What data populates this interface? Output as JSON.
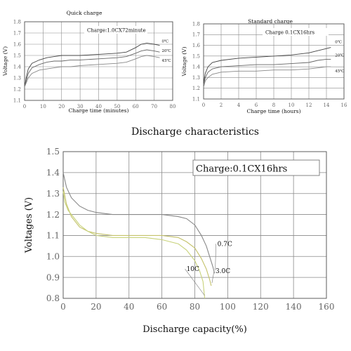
{
  "chart_data": [
    {
      "type": "line",
      "title": "Quick charge",
      "annotation": "Charge:1.0CX72minute",
      "xlabel": "Charge time (minutes)",
      "ylabel": "Voltage (V)",
      "xlim": [
        0,
        80
      ],
      "ylim": [
        1.1,
        1.8
      ],
      "xticks": [
        "0",
        "10",
        "20",
        "30",
        "40",
        "50",
        "60",
        "70",
        "80"
      ],
      "yticks": [
        "1.1",
        "1.2",
        "1.3",
        "1.4",
        "1.5",
        "1.6",
        "1.7",
        "1.8"
      ],
      "grid": true,
      "series": [
        {
          "name": "0℃",
          "color": "#444444",
          "x": [
            0,
            1,
            2,
            4,
            8,
            12,
            16,
            20,
            25,
            30,
            40,
            50,
            55,
            60,
            63,
            66,
            70,
            73
          ],
          "y": [
            1.22,
            1.31,
            1.38,
            1.43,
            1.46,
            1.48,
            1.49,
            1.5,
            1.5,
            1.5,
            1.51,
            1.52,
            1.53,
            1.57,
            1.6,
            1.61,
            1.6,
            1.59
          ]
        },
        {
          "name": "20℃",
          "color": "#666666",
          "x": [
            0,
            1,
            2,
            4,
            8,
            12,
            16,
            20,
            25,
            30,
            40,
            50,
            55,
            60,
            63,
            66,
            70,
            73
          ],
          "y": [
            1.22,
            1.28,
            1.34,
            1.39,
            1.42,
            1.44,
            1.45,
            1.45,
            1.46,
            1.46,
            1.47,
            1.48,
            1.49,
            1.52,
            1.54,
            1.55,
            1.54,
            1.53
          ]
        },
        {
          "name": "45℃",
          "color": "#888888",
          "x": [
            0,
            1,
            2,
            4,
            8,
            12,
            16,
            20,
            25,
            30,
            40,
            50,
            55,
            60,
            63,
            66,
            70,
            73
          ],
          "y": [
            1.22,
            1.26,
            1.3,
            1.34,
            1.37,
            1.38,
            1.39,
            1.4,
            1.4,
            1.41,
            1.42,
            1.43,
            1.44,
            1.47,
            1.49,
            1.5,
            1.49,
            1.48
          ]
        }
      ]
    },
    {
      "type": "line",
      "title": "Standard charge",
      "annotation": "Charge 0.1CX16hrs",
      "xlabel": "Charge time (hours)",
      "ylabel": "Voltage (V)",
      "xlim": [
        0,
        16
      ],
      "ylim": [
        1.1,
        1.8
      ],
      "xticks": [
        "0",
        "2",
        "4",
        "6",
        "8",
        "10",
        "12",
        "14",
        "16"
      ],
      "yticks": [
        "1.1",
        "1.2",
        "1.3",
        "1.4",
        "1.5",
        "1.6",
        "1.7",
        "1.8"
      ],
      "grid": true,
      "series": [
        {
          "name": "0℃",
          "color": "#444444",
          "x": [
            0,
            0.2,
            0.5,
            1,
            2,
            4,
            6,
            8,
            10,
            12,
            13,
            14,
            14.5
          ],
          "y": [
            1.25,
            1.34,
            1.4,
            1.44,
            1.46,
            1.48,
            1.49,
            1.5,
            1.51,
            1.53,
            1.55,
            1.57,
            1.58
          ]
        },
        {
          "name": "20℃",
          "color": "#666666",
          "x": [
            0,
            0.2,
            0.5,
            1,
            2,
            4,
            6,
            8,
            10,
            12,
            13,
            14,
            14.5
          ],
          "y": [
            1.23,
            1.3,
            1.35,
            1.38,
            1.4,
            1.41,
            1.42,
            1.42,
            1.43,
            1.44,
            1.46,
            1.47,
            1.47
          ]
        },
        {
          "name": "45℃",
          "color": "#888888",
          "x": [
            0,
            0.2,
            0.5,
            1,
            2,
            4,
            6,
            8,
            10,
            12,
            13,
            14,
            14.5
          ],
          "y": [
            1.21,
            1.27,
            1.3,
            1.33,
            1.35,
            1.36,
            1.36,
            1.37,
            1.37,
            1.38,
            1.39,
            1.4,
            1.4
          ]
        }
      ]
    },
    {
      "type": "line",
      "title": "Discharge characteristics",
      "annotation": "Charge:0.1CX16hrs",
      "xlabel": "Discharge capacity(%)",
      "ylabel": "Voltages (V)",
      "xlim": [
        0,
        160
      ],
      "ylim": [
        0.8,
        1.5
      ],
      "xticks": [
        "0",
        "20",
        "40",
        "60",
        "80",
        "100",
        "120",
        "140",
        "160"
      ],
      "yticks": [
        "0.8",
        "0.9",
        "1.0",
        "1.1",
        "1.2",
        "1.3",
        "1.4",
        "1.5"
      ],
      "grid": true,
      "series": [
        {
          "name": "0.7C",
          "color": "#888888",
          "x": [
            0,
            2,
            5,
            10,
            15,
            20,
            30,
            40,
            50,
            60,
            70,
            75,
            80,
            84,
            87,
            89,
            91,
            92
          ],
          "y": [
            1.4,
            1.33,
            1.28,
            1.24,
            1.22,
            1.21,
            1.2,
            1.2,
            1.2,
            1.2,
            1.19,
            1.18,
            1.15,
            1.1,
            1.05,
            1.0,
            0.95,
            0.92
          ]
        },
        {
          "name": "3.0C",
          "color": "#c4c26a",
          "x": [
            0,
            2,
            5,
            10,
            15,
            20,
            30,
            40,
            50,
            60,
            70,
            75,
            80,
            84,
            87,
            89,
            90
          ],
          "y": [
            1.33,
            1.25,
            1.19,
            1.14,
            1.12,
            1.11,
            1.1,
            1.1,
            1.1,
            1.1,
            1.09,
            1.07,
            1.04,
            0.99,
            0.94,
            0.89,
            0.86
          ]
        },
        {
          "name": "10C",
          "color": "#c8d27a",
          "x": [
            0,
            1,
            3,
            5,
            8,
            10,
            15,
            20,
            30,
            40,
            50,
            60,
            70,
            75,
            80,
            83,
            85,
            86
          ],
          "y": [
            1.31,
            1.26,
            1.22,
            1.2,
            1.17,
            1.15,
            1.12,
            1.1,
            1.09,
            1.09,
            1.09,
            1.08,
            1.06,
            1.03,
            0.98,
            0.93,
            0.88,
            0.8
          ]
        }
      ]
    }
  ]
}
